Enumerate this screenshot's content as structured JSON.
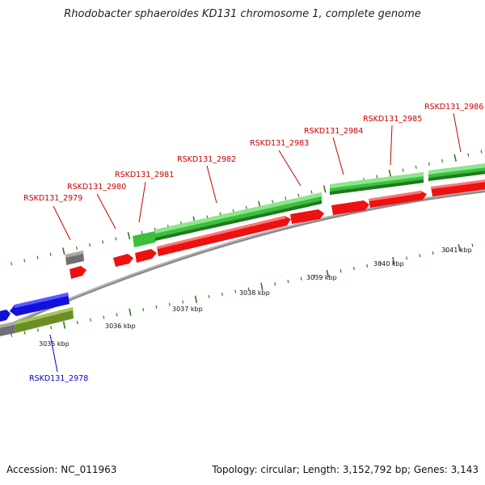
{
  "title": "Rhodobacter sphaeroides KD131 chromosome 1, complete genome",
  "footer": {
    "accession": "Accession: NC_011963",
    "topology": "Topology: circular; Length: 3,152,792 bp; Genes: 3,143"
  },
  "colors": {
    "plus_strand_label": "#cc0000",
    "minus_strand_label": "#0000cc",
    "red_gene": "#ee1111",
    "green_gene": "#33bb33",
    "blue_gene": "#1111dd",
    "olive_gene": "#6b8e23",
    "gray_gene": "#707070",
    "tick": "#2e7d1e",
    "backbone": "#8a8a8a"
  },
  "scale_labels": [
    "3035 kbp",
    "3036 kbp",
    "3037 kbp",
    "3038 kbp",
    "3039 kbp",
    "3040 kbp",
    "3041 kbp"
  ],
  "gene_labels_top": [
    "RSKD131_2979",
    "RSKD131_2980",
    "RSKD131_2981",
    "RSKD131_2982",
    "RSKD131_2983",
    "RSKD131_2984",
    "RSKD131_2985",
    "RSKD131_2986"
  ],
  "gene_labels_bottom": [
    "RSKD131_2978"
  ]
}
